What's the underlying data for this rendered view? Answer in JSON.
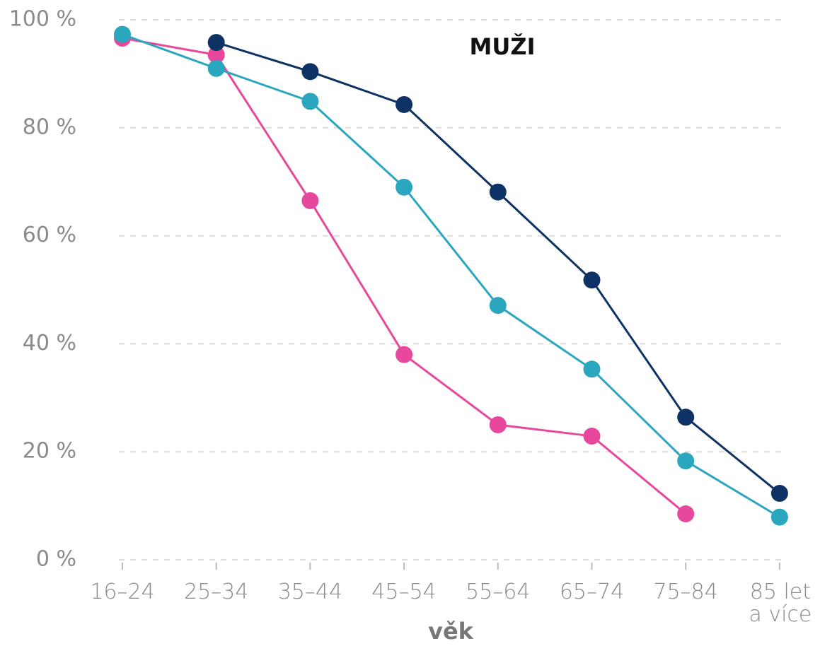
{
  "chart_data": {
    "type": "line",
    "title": "MUŽI",
    "x_label": "věk",
    "categories": [
      "16–24",
      "25–34",
      "35–44",
      "45–54",
      "55–64",
      "65–74",
      "75–84",
      "85 let a více"
    ],
    "series": [
      {
        "color": "#e8489b",
        "values": [
          96.6,
          93.5,
          66.5,
          38.0,
          25.0,
          22.9,
          8.5,
          null
        ]
      },
      {
        "color": "#0e3264",
        "values": [
          null,
          95.8,
          90.4,
          84.3,
          68.1,
          51.8,
          26.4,
          12.3
        ]
      },
      {
        "color": "#2aa7bf",
        "values": [
          97.3,
          91.0,
          84.9,
          69.0,
          47.1,
          35.3,
          18.3,
          7.9
        ]
      }
    ],
    "ylim": [
      0,
      100
    ],
    "yticks": [
      {
        "value": 0,
        "label": "0 %"
      },
      {
        "value": 20,
        "label": "20 %"
      },
      {
        "value": 40,
        "label": "40 %"
      },
      {
        "value": 60,
        "label": "60 %"
      },
      {
        "value": 80,
        "label": "80 %"
      },
      {
        "value": 100,
        "label": "100 %"
      }
    ],
    "grid": true
  }
}
